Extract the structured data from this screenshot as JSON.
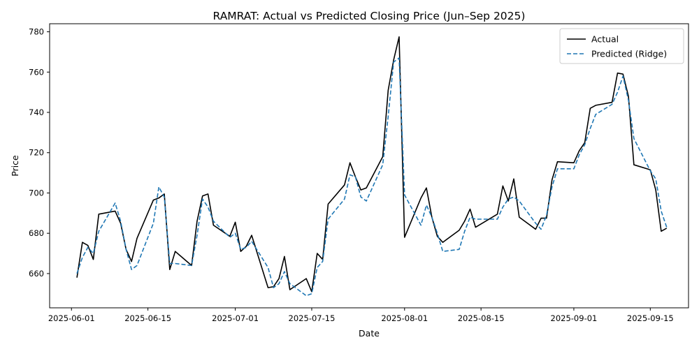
{
  "chart_data": {
    "type": "line",
    "title": "RAMRAT: Actual vs Predicted Closing Price (Jun–Sep 2025)",
    "xlabel": "Date",
    "ylabel": "Price",
    "xlim": [
      "2025-05-28",
      "2025-09-22"
    ],
    "ylim": [
      643,
      784
    ],
    "x_ticks": [
      "2025-06-01",
      "2025-06-15",
      "2025-07-01",
      "2025-07-15",
      "2025-08-01",
      "2025-08-15",
      "2025-09-01",
      "2025-09-15"
    ],
    "y_ticks": [
      660,
      680,
      700,
      720,
      740,
      760,
      780
    ],
    "grid": false,
    "legend_position": "top-right",
    "series": [
      {
        "name": "Actual",
        "color": "#000000",
        "style": "solid",
        "points": [
          [
            "2025-06-02",
            658
          ],
          [
            "2025-06-03",
            675.5
          ],
          [
            "2025-06-04",
            674
          ],
          [
            "2025-06-05",
            667
          ],
          [
            "2025-06-06",
            689.5
          ],
          [
            "2025-06-09",
            691
          ],
          [
            "2025-06-10",
            685
          ],
          [
            "2025-06-11",
            672
          ],
          [
            "2025-06-12",
            666
          ],
          [
            "2025-06-13",
            677.5
          ],
          [
            "2025-06-16",
            696.5
          ],
          [
            "2025-06-17",
            697.5
          ],
          [
            "2025-06-18",
            699.5
          ],
          [
            "2025-06-19",
            662
          ],
          [
            "2025-06-20",
            671
          ],
          [
            "2025-06-23",
            664
          ],
          [
            "2025-06-24",
            686
          ],
          [
            "2025-06-25",
            698.5
          ],
          [
            "2025-06-26",
            699.5
          ],
          [
            "2025-06-27",
            684
          ],
          [
            "2025-06-30",
            678.5
          ],
          [
            "2025-07-01",
            685.5
          ],
          [
            "2025-07-02",
            671
          ],
          [
            "2025-07-03",
            673.5
          ],
          [
            "2025-07-04",
            679
          ],
          [
            "2025-07-07",
            653
          ],
          [
            "2025-07-08",
            653.5
          ],
          [
            "2025-07-09",
            657.5
          ],
          [
            "2025-07-10",
            668.5
          ],
          [
            "2025-07-11",
            652
          ],
          [
            "2025-07-14",
            657.5
          ],
          [
            "2025-07-15",
            651
          ],
          [
            "2025-07-16",
            670
          ],
          [
            "2025-07-17",
            667
          ],
          [
            "2025-07-18",
            694.5
          ],
          [
            "2025-07-21",
            704
          ],
          [
            "2025-07-22",
            715
          ],
          [
            "2025-07-23",
            708
          ],
          [
            "2025-07-24",
            701.5
          ],
          [
            "2025-07-25",
            702.5
          ],
          [
            "2025-07-28",
            718
          ],
          [
            "2025-07-29",
            751
          ],
          [
            "2025-07-30",
            766
          ],
          [
            "2025-07-31",
            777.5
          ],
          [
            "2025-08-01",
            678
          ],
          [
            "2025-08-04",
            697.5
          ],
          [
            "2025-08-05",
            702.5
          ],
          [
            "2025-08-06",
            688
          ],
          [
            "2025-08-07",
            678.5
          ],
          [
            "2025-08-08",
            675.5
          ],
          [
            "2025-08-11",
            681.5
          ],
          [
            "2025-08-12",
            686
          ],
          [
            "2025-08-13",
            692
          ],
          [
            "2025-08-14",
            683
          ],
          [
            "2025-08-18",
            689.5
          ],
          [
            "2025-08-19",
            703.5
          ],
          [
            "2025-08-20",
            696
          ],
          [
            "2025-08-21",
            707
          ],
          [
            "2025-08-22",
            688
          ],
          [
            "2025-08-25",
            682
          ],
          [
            "2025-08-26",
            687.5
          ],
          [
            "2025-08-27",
            687.5
          ],
          [
            "2025-08-28",
            706.5
          ],
          [
            "2025-08-29",
            715.5
          ],
          [
            "2025-09-01",
            715
          ],
          [
            "2025-09-02",
            721
          ],
          [
            "2025-09-03",
            725
          ],
          [
            "2025-09-04",
            742
          ],
          [
            "2025-09-05",
            743.5
          ],
          [
            "2025-09-08",
            745
          ],
          [
            "2025-09-09",
            759.5
          ],
          [
            "2025-09-10",
            759
          ],
          [
            "2025-09-11",
            748
          ],
          [
            "2025-09-12",
            714
          ],
          [
            "2025-09-15",
            711.5
          ],
          [
            "2025-09-16",
            701.5
          ],
          [
            "2025-09-17",
            681
          ],
          [
            "2025-09-18",
            682.5
          ]
        ]
      },
      {
        "name": "Predicted (Ridge)",
        "color": "#1f77b4",
        "style": "dashed",
        "points": [
          [
            "2025-06-02",
            660
          ],
          [
            "2025-06-03",
            668
          ],
          [
            "2025-06-04",
            673
          ],
          [
            "2025-06-05",
            670
          ],
          [
            "2025-06-06",
            681
          ],
          [
            "2025-06-09",
            695
          ],
          [
            "2025-06-10",
            686
          ],
          [
            "2025-06-11",
            672
          ],
          [
            "2025-06-12",
            662
          ],
          [
            "2025-06-13",
            664
          ],
          [
            "2025-06-16",
            685
          ],
          [
            "2025-06-17",
            703
          ],
          [
            "2025-06-18",
            698
          ],
          [
            "2025-06-19",
            665
          ],
          [
            "2025-06-20",
            665
          ],
          [
            "2025-06-23",
            664
          ],
          [
            "2025-06-24",
            679
          ],
          [
            "2025-06-25",
            697
          ],
          [
            "2025-06-26",
            693
          ],
          [
            "2025-06-27",
            686
          ],
          [
            "2025-06-30",
            678
          ],
          [
            "2025-07-01",
            680
          ],
          [
            "2025-07-02",
            672
          ],
          [
            "2025-07-03",
            673
          ],
          [
            "2025-07-04",
            676
          ],
          [
            "2025-07-07",
            663
          ],
          [
            "2025-07-08",
            653
          ],
          [
            "2025-07-09",
            655
          ],
          [
            "2025-07-10",
            661
          ],
          [
            "2025-07-11",
            655
          ],
          [
            "2025-07-14",
            649
          ],
          [
            "2025-07-15",
            650
          ],
          [
            "2025-07-16",
            663
          ],
          [
            "2025-07-17",
            666
          ],
          [
            "2025-07-18",
            687
          ],
          [
            "2025-07-21",
            697
          ],
          [
            "2025-07-22",
            709
          ],
          [
            "2025-07-23",
            708
          ],
          [
            "2025-07-24",
            698
          ],
          [
            "2025-07-25",
            696
          ],
          [
            "2025-07-28",
            714
          ],
          [
            "2025-07-29",
            738
          ],
          [
            "2025-07-30",
            765
          ],
          [
            "2025-07-31",
            767
          ],
          [
            "2025-08-01",
            699
          ],
          [
            "2025-08-04",
            684
          ],
          [
            "2025-08-05",
            694
          ],
          [
            "2025-08-06",
            688
          ],
          [
            "2025-08-07",
            680
          ],
          [
            "2025-08-08",
            671
          ],
          [
            "2025-08-11",
            672
          ],
          [
            "2025-08-12",
            681
          ],
          [
            "2025-08-13",
            688
          ],
          [
            "2025-08-14",
            687
          ],
          [
            "2025-08-18",
            687
          ],
          [
            "2025-08-19",
            693
          ],
          [
            "2025-08-20",
            697
          ],
          [
            "2025-08-21",
            698
          ],
          [
            "2025-08-22",
            696
          ],
          [
            "2025-08-25",
            685
          ],
          [
            "2025-08-26",
            682
          ],
          [
            "2025-08-27",
            689
          ],
          [
            "2025-08-28",
            703
          ],
          [
            "2025-08-29",
            712
          ],
          [
            "2025-09-01",
            712
          ],
          [
            "2025-09-02",
            719
          ],
          [
            "2025-09-03",
            724
          ],
          [
            "2025-09-04",
            732
          ],
          [
            "2025-09-05",
            739
          ],
          [
            "2025-09-08",
            744
          ],
          [
            "2025-09-09",
            750
          ],
          [
            "2025-09-10",
            758
          ],
          [
            "2025-09-11",
            746
          ],
          [
            "2025-09-12",
            727
          ],
          [
            "2025-09-15",
            711
          ],
          [
            "2025-09-16",
            707
          ],
          [
            "2025-09-17",
            691
          ],
          [
            "2025-09-18",
            683
          ]
        ]
      }
    ]
  }
}
